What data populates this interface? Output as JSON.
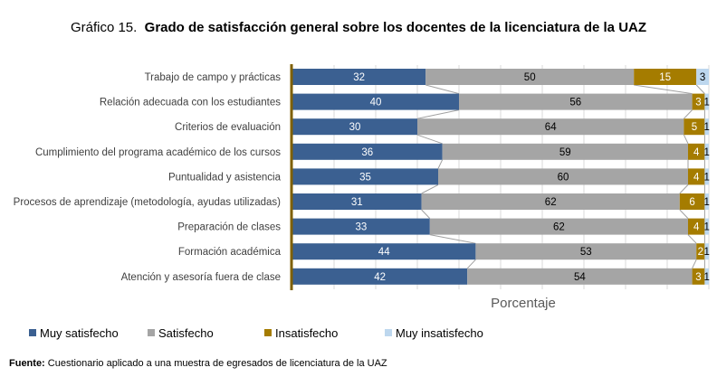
{
  "chart_data": {
    "type": "bar",
    "orientation": "horizontal",
    "stacked": true,
    "title_prefix": "Gráfico 15.",
    "title": "Grado de satisfacción general sobre los docentes de la licenciatura de la UAZ",
    "xlabel": "Porcentaje",
    "ylabel": "",
    "xlim": [
      0,
      100
    ],
    "grid": true,
    "legend_position": "bottom",
    "categories": [
      "Trabajo de campo y prácticas",
      "Relación adecuada con los estudiantes",
      "Criterios de evaluación",
      "Cumplimiento del programa académico de los cursos",
      "Puntualidad y asistencia",
      "Procesos de aprendizaje (metodología, ayudas utilizadas)",
      "Preparación de clases",
      "Formación académica",
      "Atención y asesoría fuera de clase"
    ],
    "series": [
      {
        "name": "Muy satisfecho",
        "color": "#3B6091",
        "label_color": "#ffffff",
        "values": [
          32,
          40,
          30,
          36,
          35,
          31,
          33,
          44,
          42
        ]
      },
      {
        "name": "Satisfecho",
        "color": "#A5A5A5",
        "label_color": "#000000",
        "values": [
          50,
          56,
          64,
          59,
          60,
          62,
          62,
          53,
          54
        ]
      },
      {
        "name": "Insatisfecho",
        "color": "#A57C00",
        "label_color": "#ffffff",
        "values": [
          15,
          3,
          5,
          4,
          4,
          6,
          4,
          2,
          3
        ]
      },
      {
        "name": "Muy insatisfecho",
        "color": "#BDD7EE",
        "label_color": "#000000",
        "values": [
          3,
          1,
          1,
          1,
          1,
          1,
          1,
          1,
          1
        ]
      }
    ]
  },
  "source": {
    "label": "Fuente:",
    "text": " Cuestionario aplicado a una muestra de egresados de licenciatura de la UAZ"
  }
}
